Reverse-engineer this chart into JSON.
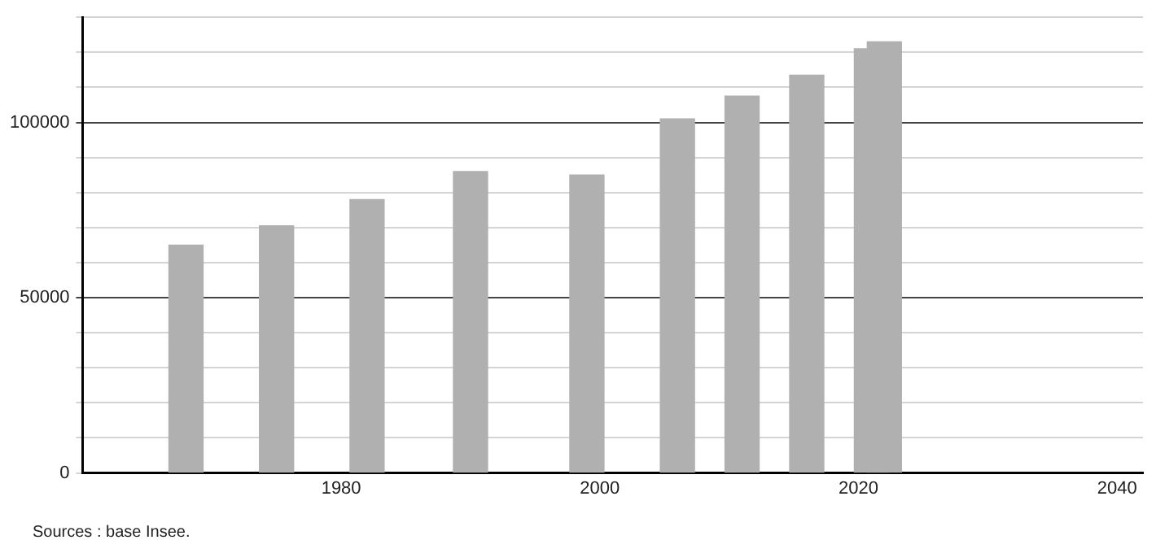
{
  "chart_data": {
    "type": "bar",
    "x": [
      1968,
      1975,
      1982,
      1990,
      1999,
      2006,
      2011,
      2016,
      2021,
      2022
    ],
    "values": [
      65000,
      70500,
      78000,
      86000,
      85000,
      101000,
      107500,
      113500,
      121000,
      123000
    ],
    "color": "#b0b0b0",
    "xlim": [
      1960,
      2042
    ],
    "xticks": [
      1980,
      2000,
      2020,
      2040
    ],
    "ylim": [
      0,
      130000
    ],
    "yticks": [
      0,
      {
        "value": 10000,
        "label": null
      },
      {
        "value": 20000,
        "label": null
      },
      {
        "value": 30000,
        "label": null
      },
      {
        "value": 40000,
        "label": null
      },
      50000,
      {
        "value": 60000,
        "label": null
      },
      {
        "value": 70000,
        "label": null
      },
      {
        "value": 80000,
        "label": null
      },
      {
        "value": 90000,
        "label": null
      },
      100000,
      {
        "value": 110000,
        "label": null
      },
      {
        "value": 120000,
        "label": null
      },
      {
        "value": 130000,
        "label": null
      }
    ],
    "grid": "y",
    "annotations": [
      "Sources : base Insee."
    ]
  }
}
